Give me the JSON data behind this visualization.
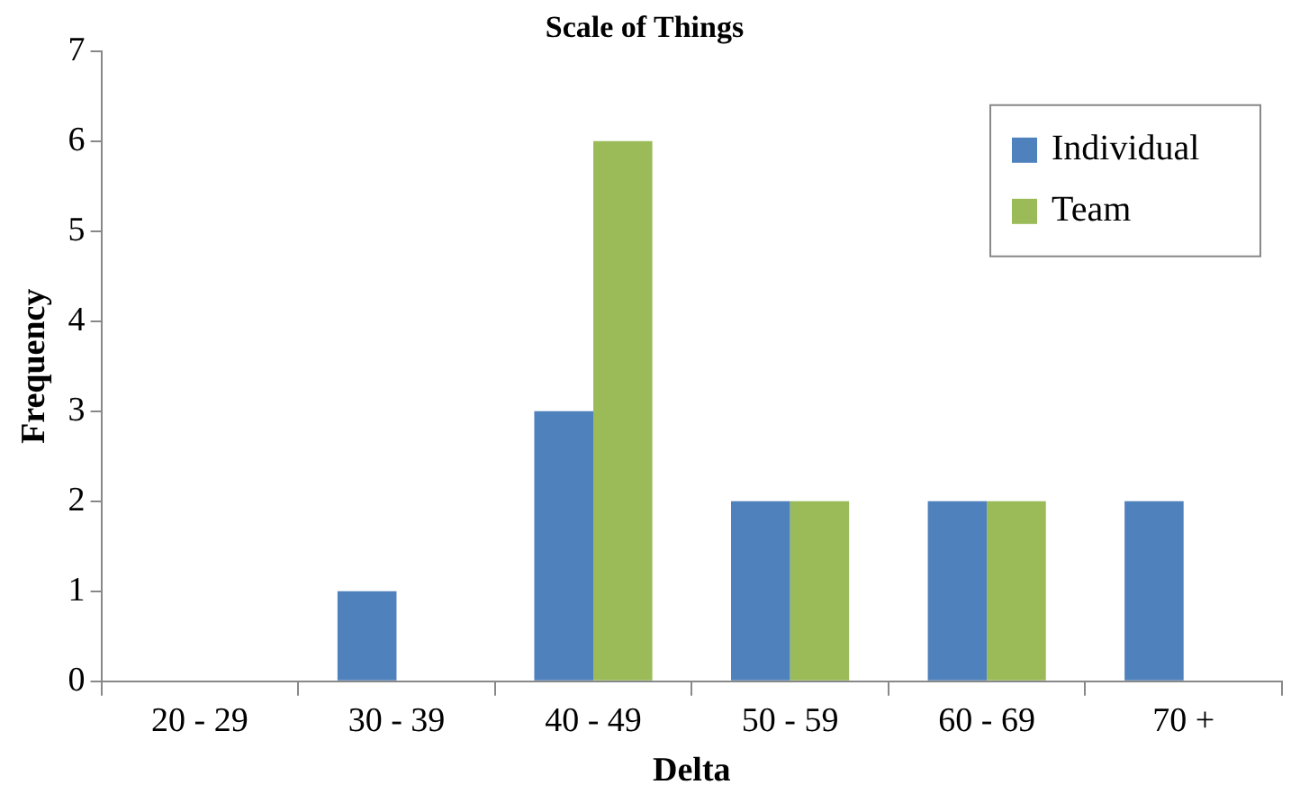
{
  "chart_data": {
    "type": "bar",
    "title": "Scale of Things",
    "xlabel": "Delta",
    "ylabel": "Frequency",
    "categories": [
      "20 - 29",
      "30 - 39",
      "40 - 49",
      "50 - 59",
      "60 - 69",
      "70 +"
    ],
    "series": [
      {
        "name": "Individual",
        "color": "#4f81bd",
        "values": [
          0,
          1,
          3,
          2,
          2,
          2
        ]
      },
      {
        "name": "Team",
        "color": "#9bbb59",
        "values": [
          0,
          0,
          6,
          2,
          2,
          0
        ]
      }
    ],
    "ylim": [
      0,
      7
    ],
    "yticks": [
      0,
      1,
      2,
      3,
      4,
      5,
      6,
      7
    ],
    "grid": false,
    "legend": "top right"
  }
}
